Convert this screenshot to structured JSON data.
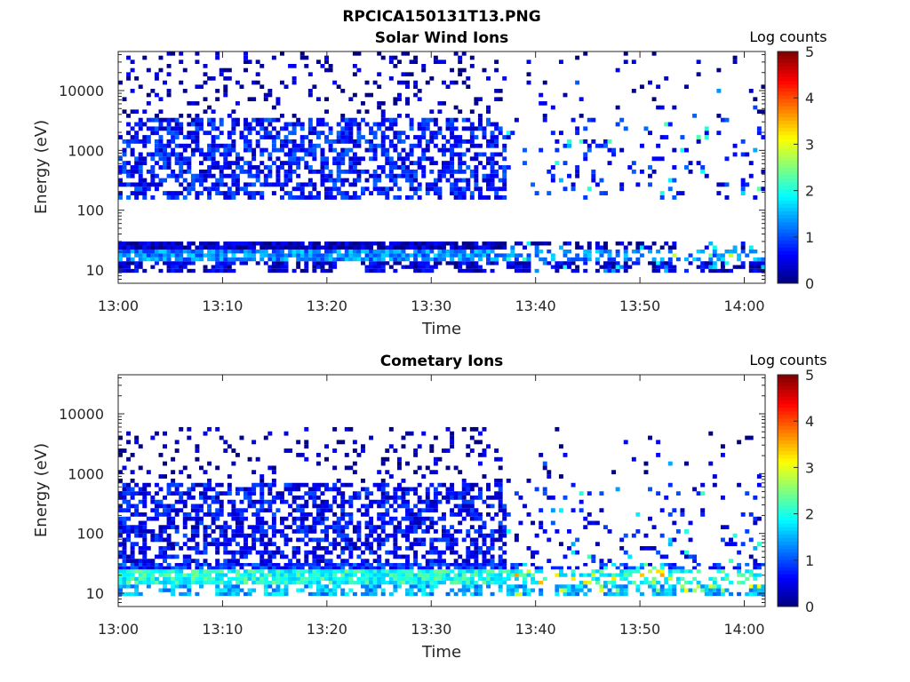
{
  "figure": {
    "title": "RPCICA150131T13.PNG"
  },
  "chart_data": [
    {
      "type": "heatmap",
      "title": "Solar Wind Ions",
      "xlabel": "Time",
      "ylabel": "Energy (eV)",
      "x_ticks": [
        "13:00",
        "13:10",
        "13:20",
        "13:30",
        "13:40",
        "13:50",
        "14:00"
      ],
      "x_range_minutes": [
        0,
        62
      ],
      "y_scale": "log",
      "y_ticks": [
        "10",
        "100",
        "1000",
        "10000"
      ],
      "y_range_ev": [
        6,
        45000
      ],
      "colorbar": {
        "label": "Log counts",
        "ticks": [
          "0",
          "1",
          "2",
          "3",
          "4",
          "5"
        ],
        "range": [
          0,
          5
        ],
        "colormap": "jet"
      },
      "bands": [
        {
          "energy_ev": [
            9,
            14
          ],
          "log_counts": 0.4,
          "coverage": "gapped"
        },
        {
          "energy_ev": [
            14,
            22
          ],
          "log_counts": 1.3,
          "coverage": "dense"
        },
        {
          "energy_ev": [
            22,
            30
          ],
          "log_counts": 0.3,
          "coverage": "dense"
        },
        {
          "energy_ev": [
            150,
            3500
          ],
          "log_counts": 0.7,
          "coverage": "dense until 13:36, sparse after"
        },
        {
          "energy_ev": [
            3500,
            45000
          ],
          "log_counts": 0.2,
          "coverage": "sparse streaks"
        }
      ]
    },
    {
      "type": "heatmap",
      "title": "Cometary Ions",
      "xlabel": "Time",
      "ylabel": "Energy (eV)",
      "x_ticks": [
        "13:00",
        "13:10",
        "13:20",
        "13:30",
        "13:40",
        "13:50",
        "14:00"
      ],
      "x_range_minutes": [
        0,
        62
      ],
      "y_scale": "log",
      "y_ticks": [
        "10",
        "100",
        "1000",
        "10000"
      ],
      "y_range_ev": [
        6,
        45000
      ],
      "colorbar": {
        "label": "Log counts",
        "ticks": [
          "0",
          "1",
          "2",
          "3",
          "4",
          "5"
        ],
        "range": [
          0,
          5
        ],
        "colormap": "jet"
      },
      "bands": [
        {
          "energy_ev": [
            9,
            14
          ],
          "log_counts": 1.5,
          "coverage": "gapped"
        },
        {
          "energy_ev": [
            14,
            25
          ],
          "log_counts": 2.0,
          "coverage": "dense"
        },
        {
          "energy_ev": [
            25,
            32
          ],
          "log_counts": 0.8,
          "coverage": "dense"
        },
        {
          "energy_ev": [
            32,
            700
          ],
          "log_counts": 0.6,
          "coverage": "dense until 13:38, sparse after"
        },
        {
          "energy_ev": [
            700,
            6000
          ],
          "log_counts": 0.2,
          "coverage": "sparse streaks"
        }
      ]
    }
  ]
}
